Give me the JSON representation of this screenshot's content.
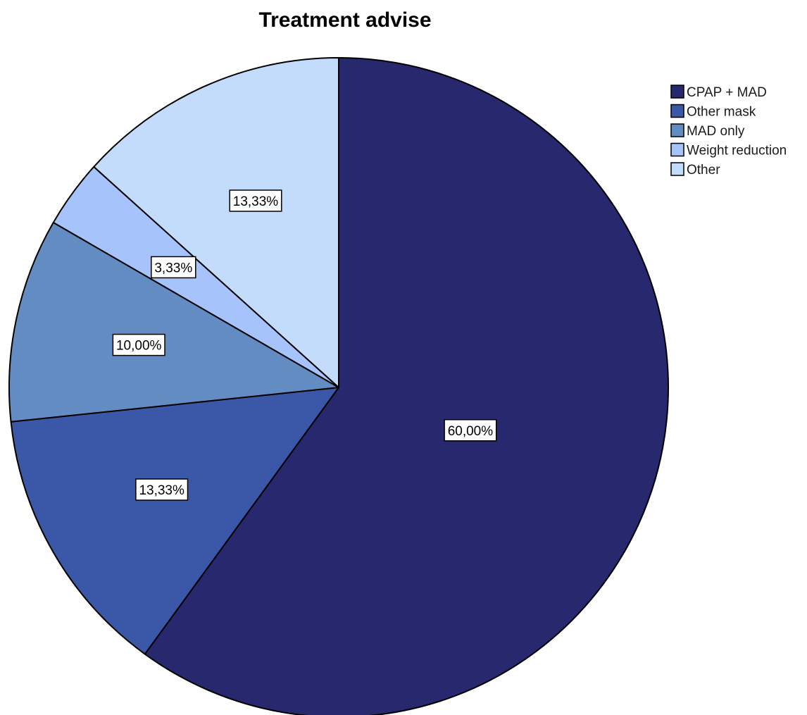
{
  "chart_data": {
    "type": "pie",
    "title": "Treatment advise",
    "slices": [
      {
        "label": "CPAP + MAD",
        "value": 60.0,
        "data_label": "60,00%",
        "color": "#27286e"
      },
      {
        "label": "Other mask",
        "value": 13.33,
        "data_label": "13,33%",
        "color": "#3b57a8"
      },
      {
        "label": "MAD only",
        "value": 10.0,
        "data_label": "10,00%",
        "color": "#628cc2"
      },
      {
        "label": "Weight reduction",
        "value": 3.33,
        "data_label": "3,33%",
        "color": "#a6c4fb"
      },
      {
        "label": "Other",
        "value": 13.33,
        "data_label": "13,33%",
        "color": "#c4dcfb"
      }
    ],
    "start_angle": "12 o'clock",
    "direction": "clockwise",
    "legend": {
      "position": "right",
      "entries": [
        "CPAP + MAD",
        "Other mask",
        "MAD only",
        "Weight reduction",
        "Other"
      ]
    }
  }
}
